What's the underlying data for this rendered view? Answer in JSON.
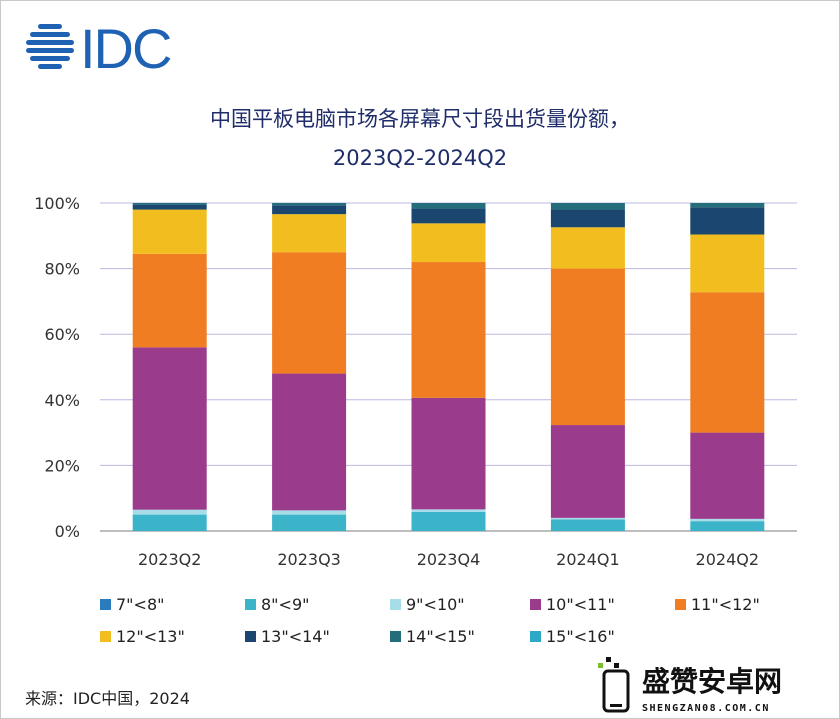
{
  "logo": {
    "text": "IDC",
    "color": "#1f62b4"
  },
  "title_line1": "中国平板电脑市场各屏幕尺寸段出货量份额，",
  "title_line2": "2023Q2-2024Q2",
  "source": "来源：IDC中国，2024",
  "watermark": {
    "brand": "盛赞安卓网",
    "domain": "SHENGZAN08.COM.CN"
  },
  "chart_data": {
    "type": "bar",
    "stacked": true,
    "categories": [
      "2023Q2",
      "2023Q3",
      "2023Q4",
      "2024Q1",
      "2024Q2"
    ],
    "y_tick_labels": [
      "0%",
      "20%",
      "40%",
      "60%",
      "80%",
      "100%"
    ],
    "ylim": [
      0,
      100
    ],
    "grid": true,
    "legend_position": "bottom",
    "series": [
      {
        "name": "7\"<8\"",
        "color": "#2b7bbf",
        "values": [
          0.0,
          0.0,
          0.0,
          0.0,
          0.0
        ]
      },
      {
        "name": "8\"<9\"",
        "color": "#3bb3c9",
        "values": [
          5.0,
          5.0,
          5.8,
          3.5,
          3.0
        ]
      },
      {
        "name": "9\"<10\"",
        "color": "#a7dde9",
        "values": [
          1.5,
          1.3,
          0.8,
          0.5,
          0.7
        ]
      },
      {
        "name": "10\"<11\"",
        "color": "#9b3b8c",
        "values": [
          49.5,
          41.7,
          34.0,
          28.3,
          26.3
        ]
      },
      {
        "name": "11\"<12\"",
        "color": "#f07d22",
        "values": [
          28.5,
          37.0,
          41.4,
          47.7,
          42.8
        ]
      },
      {
        "name": "12\"<13\"",
        "color": "#f2be1f",
        "values": [
          13.5,
          11.6,
          11.8,
          12.6,
          17.6
        ]
      },
      {
        "name": "13\"<14\"",
        "color": "#1b466f",
        "values": [
          1.5,
          2.7,
          4.5,
          5.4,
          8.3
        ]
      },
      {
        "name": "14\"<15\"",
        "color": "#246d7b",
        "values": [
          0.5,
          0.7,
          1.7,
          2.0,
          1.3
        ]
      },
      {
        "name": "15\"<16\"",
        "color": "#2ea8c7",
        "values": [
          0.0,
          0.0,
          0.0,
          0.0,
          0.0
        ]
      }
    ]
  }
}
